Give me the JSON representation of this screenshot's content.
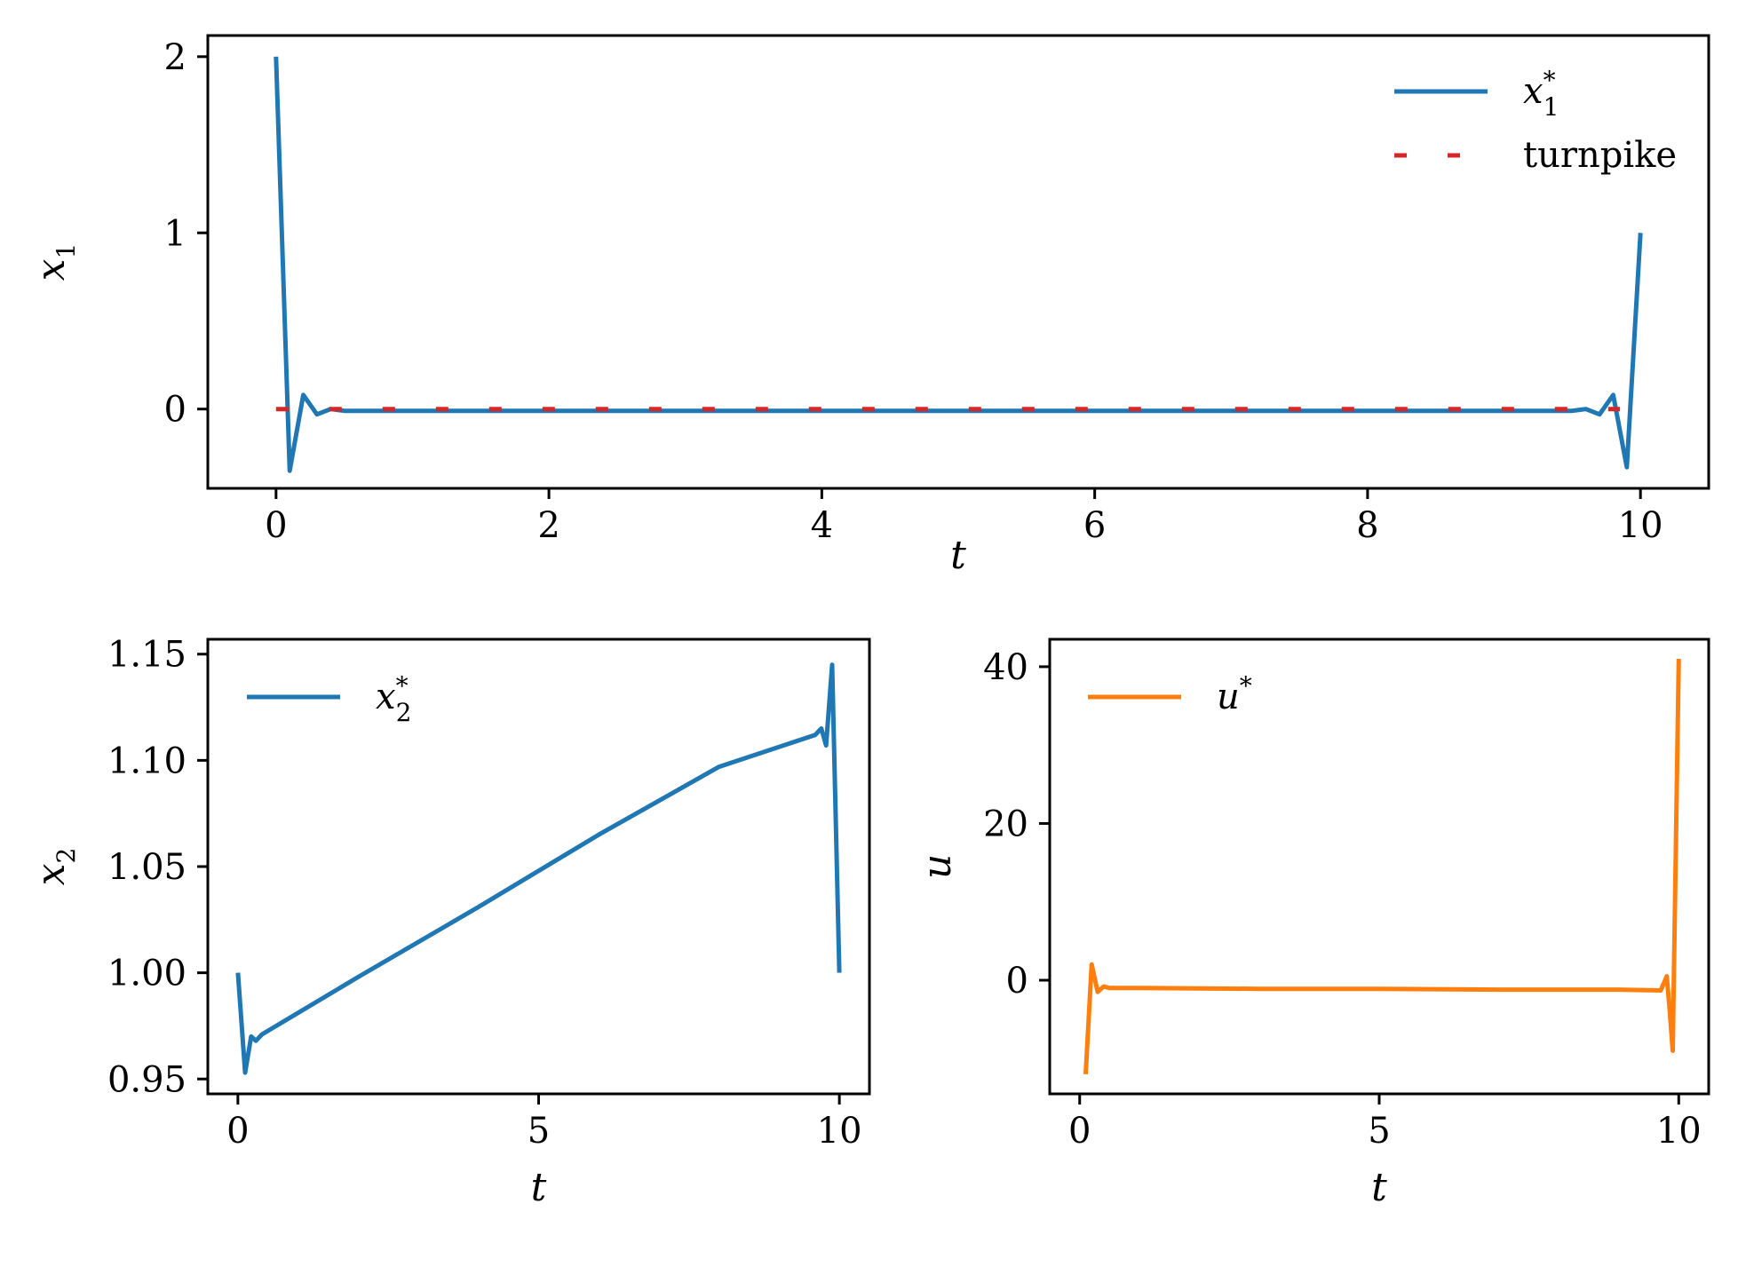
{
  "chart_data": [
    {
      "type": "line",
      "xlabel": "t",
      "ylabel": "x",
      "ylabel_sub": "1",
      "xlim": [
        -0.5,
        10.5
      ],
      "ylim": [
        -0.45,
        2.12
      ],
      "xticks": [
        0,
        2,
        4,
        6,
        8,
        10
      ],
      "xtick_labels": [
        "0",
        "2",
        "4",
        "6",
        "8",
        "10"
      ],
      "yticks": [
        0,
        1,
        2
      ],
      "ytick_labels": [
        "0",
        "1",
        "2"
      ],
      "grid": false,
      "legend_position": "top-right",
      "series": [
        {
          "name": "x",
          "name_sub": "1",
          "name_sup": "*",
          "color": "#1f77b4",
          "style": "solid",
          "x": [
            0,
            0.1,
            0.2,
            0.3,
            0.4,
            0.5,
            1,
            2,
            3,
            4,
            5,
            6,
            7,
            8,
            9,
            9.5,
            9.6,
            9.7,
            9.8,
            9.9,
            10
          ],
          "y": [
            2.0,
            -0.35,
            0.08,
            -0.03,
            0.0,
            -0.01,
            -0.01,
            -0.01,
            -0.01,
            -0.01,
            -0.01,
            -0.01,
            -0.01,
            -0.01,
            -0.01,
            -0.01,
            0.0,
            -0.03,
            0.08,
            -0.33,
            1.0
          ]
        },
        {
          "name": "turnpike",
          "color": "#d62728",
          "style": "dashed",
          "x": [
            0,
            9.85
          ],
          "y": [
            0,
            0
          ]
        }
      ]
    },
    {
      "type": "line",
      "xlabel": "t",
      "ylabel": "x",
      "ylabel_sub": "2",
      "xlim": [
        -0.5,
        10.5
      ],
      "ylim": [
        0.943,
        1.157
      ],
      "xticks": [
        0,
        5,
        10
      ],
      "xtick_labels": [
        "0",
        "5",
        "10"
      ],
      "yticks": [
        0.95,
        1.0,
        1.05,
        1.1,
        1.15
      ],
      "ytick_labels": [
        "0.95",
        "1.00",
        "1.05",
        "1.10",
        "1.15"
      ],
      "grid": false,
      "legend_position": "top-left",
      "series": [
        {
          "name": "x",
          "name_sub": "2",
          "name_sup": "*",
          "color": "#1f77b4",
          "style": "solid",
          "x": [
            0,
            0.12,
            0.22,
            0.3,
            0.4,
            2,
            4,
            6,
            8,
            9.6,
            9.7,
            9.78,
            9.88,
            10
          ],
          "y": [
            1.0,
            0.953,
            0.97,
            0.968,
            0.971,
            0.998,
            1.031,
            1.065,
            1.097,
            1.112,
            1.115,
            1.107,
            1.145,
            1.0
          ]
        }
      ]
    },
    {
      "type": "line",
      "xlabel": "t",
      "ylabel": "u",
      "xlim": [
        -0.5,
        10.5
      ],
      "ylim": [
        -14.5,
        43.5
      ],
      "xticks": [
        0,
        5,
        10
      ],
      "xtick_labels": [
        "0",
        "5",
        "10"
      ],
      "yticks": [
        0,
        20,
        40
      ],
      "ytick_labels": [
        "0",
        "20",
        "40"
      ],
      "grid": false,
      "legend_position": "top-left",
      "series": [
        {
          "name": "u",
          "name_sup": "*",
          "color": "#ff7f0e",
          "style": "solid",
          "x": [
            0.1,
            0.2,
            0.3,
            0.4,
            0.5,
            1,
            3,
            5,
            7,
            9,
            9.7,
            9.8,
            9.85,
            9.9,
            10
          ],
          "y": [
            -12.0,
            2.0,
            -1.5,
            -0.8,
            -1.0,
            -1.0,
            -1.1,
            -1.1,
            -1.2,
            -1.2,
            -1.3,
            0.5,
            -4.0,
            -9.0,
            41.0
          ]
        }
      ]
    }
  ]
}
